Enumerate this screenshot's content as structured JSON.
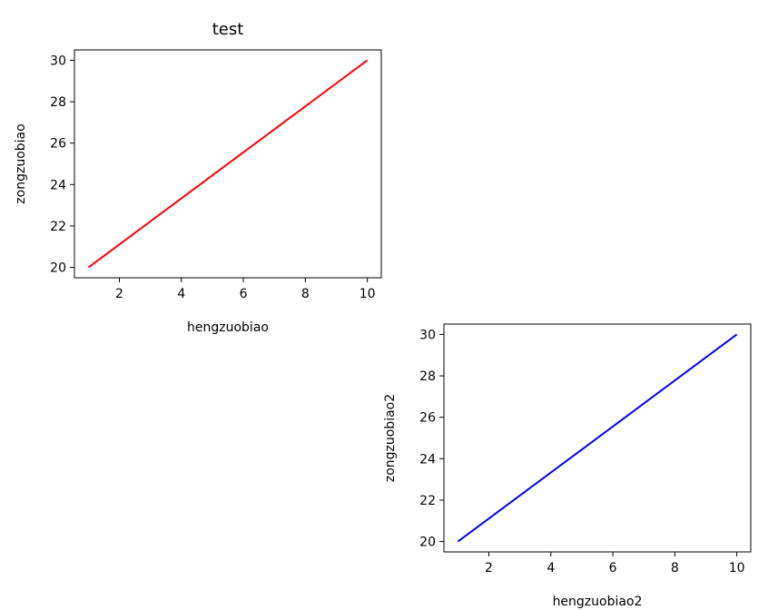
{
  "chart_data": [
    {
      "type": "line",
      "title": "test",
      "xlabel": "hengzuobiao",
      "ylabel": "zongzuobiao",
      "x": [
        1,
        10
      ],
      "series": [
        {
          "values": [
            20,
            30
          ],
          "color": "#ff0000"
        }
      ],
      "xlim": [
        0.55,
        10.45
      ],
      "ylim": [
        19.5,
        30.5
      ],
      "xticks": [
        2,
        4,
        6,
        8,
        10
      ],
      "yticks": [
        20,
        22,
        24,
        26,
        28,
        30
      ],
      "grid": false
    },
    {
      "type": "line",
      "title": "",
      "xlabel": "hengzuobiao2",
      "ylabel": "zongzuobiao2",
      "x": [
        1,
        10
      ],
      "series": [
        {
          "values": [
            20,
            30
          ],
          "color": "#0000ff"
        }
      ],
      "xlim": [
        0.55,
        10.45
      ],
      "ylim": [
        19.5,
        30.5
      ],
      "xticks": [
        2,
        4,
        6,
        8,
        10
      ],
      "yticks": [
        20,
        22,
        24,
        26,
        28,
        30
      ],
      "grid": false
    }
  ]
}
